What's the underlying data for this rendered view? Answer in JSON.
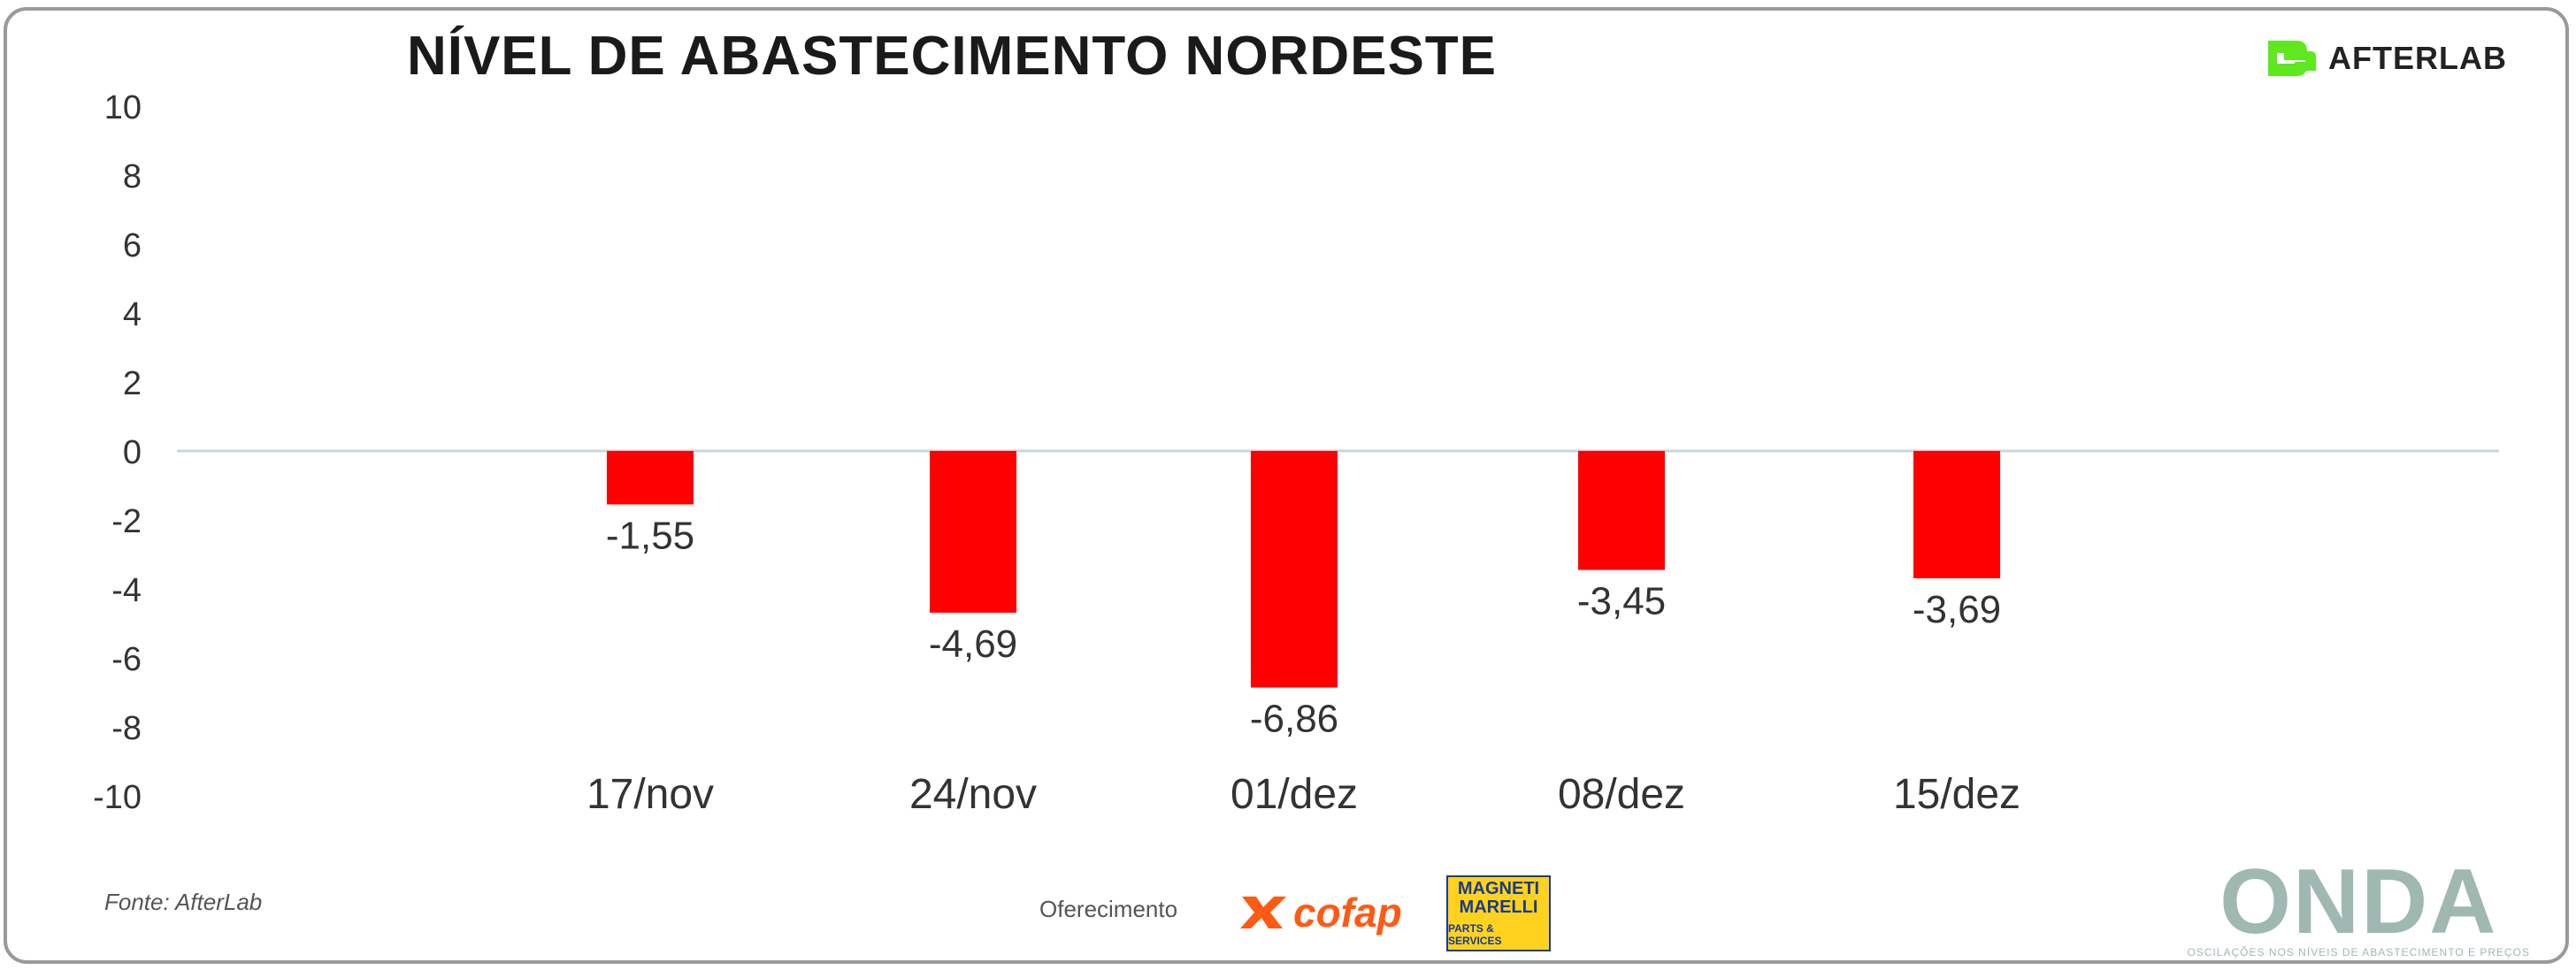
{
  "chart_data": {
    "type": "bar",
    "title": "NÍVEL DE ABASTECIMENTO NORDESTE",
    "categories": [
      "17/nov",
      "24/nov",
      "01/dez",
      "08/dez",
      "15/dez"
    ],
    "values": [
      -1.55,
      -4.69,
      -6.86,
      -3.45,
      -3.69
    ],
    "value_labels": [
      "-1,55",
      "-4,69",
      "-6,86",
      "-3,45",
      "-3,69"
    ],
    "ylim": [
      -10,
      10
    ],
    "yticks": [
      -10,
      -8,
      -6,
      -4,
      -2,
      0,
      2,
      4,
      6,
      8,
      10
    ],
    "xlabel": "",
    "ylabel": "",
    "grid": false,
    "bar_color": "#ff0000",
    "zero_line_color": "#c9d6dc"
  },
  "branding": {
    "logo_text": "AFTERLAB",
    "logo_color": "#5ee81f",
    "source_label": "Fonte: AfterLab",
    "sponsor_label": "Oferecimento",
    "cofap_text": "cofap",
    "cofap_color": "#ff5a14",
    "magneti_name": "MAGNETI MARELLI",
    "magneti_sub": "PARTS & SERVICES",
    "onda_word": "ONDA",
    "onda_tagline": "OSCILAÇÕES NOS NÍVEIS DE ABASTECIMENTO E PREÇOS"
  }
}
